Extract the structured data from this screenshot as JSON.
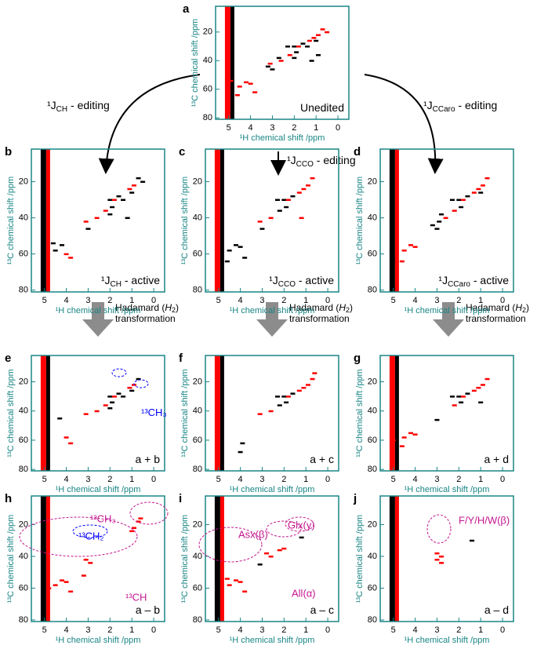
{
  "arrows": {
    "left": [
      "¹J",
      "CH",
      " - editing"
    ],
    "mid": [
      "¹J",
      "CCO",
      " - editing"
    ],
    "right": [
      "¹J",
      "CCaro",
      " - editing"
    ],
    "hadamard": [
      "Hadamard (",
      "H",
      "2",
      ")",
      "transformation"
    ]
  },
  "panels": [
    {
      "letter": "a",
      "label": [
        "",
        "",
        "Unedited"
      ],
      "xlabel": "¹H chemical shift /ppm",
      "ylabel": "¹³C chemical shift /ppm",
      "xlim": [
        5.6,
        -0.5
      ],
      "ylim": [
        2,
        81
      ],
      "xticks": [
        5,
        4,
        3,
        2,
        1,
        0
      ],
      "yticks": [
        20,
        40,
        60,
        80
      ],
      "red_peaks": [
        [
          0.9,
          22
        ],
        [
          0.7,
          18
        ],
        [
          1.1,
          24
        ],
        [
          0.5,
          20
        ],
        [
          1.3,
          26
        ],
        [
          1.8,
          30
        ],
        [
          2.2,
          36
        ],
        [
          2.6,
          40
        ],
        [
          3.1,
          42
        ],
        [
          4.2,
          55
        ],
        [
          4.5,
          58
        ],
        [
          4.0,
          56
        ],
        [
          3.8,
          62
        ],
        [
          4.6,
          64
        ],
        [
          4.9,
          54
        ]
      ],
      "black_peaks": [
        [
          1.6,
          28
        ],
        [
          2.0,
          30
        ],
        [
          1.9,
          34
        ],
        [
          2.3,
          30
        ],
        [
          1.4,
          30
        ],
        [
          1.0,
          26
        ],
        [
          3.0,
          46
        ],
        [
          3.2,
          44
        ],
        [
          2.7,
          38
        ],
        [
          2.0,
          38
        ],
        [
          1.2,
          40
        ],
        [
          0.9,
          36
        ]
      ],
      "annotations": []
    },
    {
      "letter": "b",
      "label": [
        "¹J",
        "CH",
        " - active"
      ],
      "xlabel": "¹H chemical shift /ppm",
      "ylabel": "¹³C chemical shift /ppm",
      "xlim": [
        5.6,
        -0.5
      ],
      "ylim": [
        2,
        81
      ],
      "xticks": [
        5,
        4,
        3,
        2,
        1,
        0
      ],
      "yticks": [
        20,
        40,
        60,
        80
      ],
      "red_peaks": [
        [
          0.9,
          22
        ],
        [
          1.1,
          24
        ],
        [
          1.8,
          30
        ],
        [
          2.2,
          36
        ],
        [
          2.6,
          40
        ],
        [
          3.1,
          42
        ],
        [
          4.0,
          60
        ],
        [
          3.8,
          62
        ]
      ],
      "black_peaks": [
        [
          1.6,
          28
        ],
        [
          2.0,
          30
        ],
        [
          1.9,
          34
        ],
        [
          1.4,
          30
        ],
        [
          1.0,
          26
        ],
        [
          0.7,
          18
        ],
        [
          0.5,
          20
        ],
        [
          3.0,
          46
        ],
        [
          4.2,
          55
        ],
        [
          4.5,
          58
        ],
        [
          4.6,
          54
        ],
        [
          2.0,
          38
        ],
        [
          1.2,
          40
        ]
      ],
      "annotations": []
    },
    {
      "letter": "c",
      "label": [
        "¹J",
        "CCO",
        " - active"
      ],
      "xlabel": "¹H chemical shift /ppm",
      "ylabel": "¹³C chemical shift /ppm",
      "xlim": [
        5.6,
        -0.5
      ],
      "ylim": [
        2,
        81
      ],
      "xticks": [
        5,
        4,
        3,
        2,
        1,
        0
      ],
      "yticks": [
        20,
        40,
        60,
        80
      ],
      "red_peaks": [
        [
          0.9,
          22
        ],
        [
          0.7,
          18
        ],
        [
          1.1,
          24
        ],
        [
          1.3,
          26
        ],
        [
          1.8,
          30
        ],
        [
          2.6,
          40
        ],
        [
          3.1,
          42
        ],
        [
          1.2,
          40
        ]
      ],
      "black_peaks": [
        [
          1.6,
          28
        ],
        [
          2.0,
          30
        ],
        [
          1.9,
          34
        ],
        [
          2.3,
          30
        ],
        [
          4.2,
          55
        ],
        [
          4.5,
          58
        ],
        [
          4.0,
          56
        ],
        [
          3.8,
          62
        ],
        [
          4.6,
          64
        ],
        [
          3.0,
          46
        ],
        [
          2.2,
          36
        ]
      ],
      "annotations": []
    },
    {
      "letter": "d",
      "label": [
        "¹J",
        "CCaro",
        " - active"
      ],
      "xlabel": "¹H chemical shift /ppm",
      "ylabel": "¹³C chemical shift /ppm",
      "xlim": [
        5.6,
        -0.5
      ],
      "ylim": [
        2,
        81
      ],
      "xticks": [
        5,
        4,
        3,
        2,
        1,
        0
      ],
      "yticks": [
        20,
        40,
        60,
        80
      ],
      "red_peaks": [
        [
          0.9,
          22
        ],
        [
          0.7,
          18
        ],
        [
          1.1,
          24
        ],
        [
          1.3,
          26
        ],
        [
          1.8,
          30
        ],
        [
          2.2,
          36
        ],
        [
          2.6,
          40
        ],
        [
          4.2,
          55
        ],
        [
          4.5,
          58
        ],
        [
          4.0,
          56
        ],
        [
          4.6,
          64
        ]
      ],
      "black_peaks": [
        [
          1.6,
          28
        ],
        [
          2.0,
          30
        ],
        [
          1.9,
          34
        ],
        [
          2.3,
          30
        ],
        [
          1.0,
          26
        ],
        [
          3.0,
          46
        ],
        [
          3.2,
          44
        ],
        [
          2.8,
          38
        ],
        [
          2.9,
          42
        ]
      ],
      "annotations": []
    },
    {
      "letter": "e",
      "label": [
        "",
        "",
        "a + b"
      ],
      "xlabel": "¹H chemical shift /ppm",
      "ylabel": "¹³C chemical shift /ppm",
      "xlim": [
        5.6,
        -0.5
      ],
      "ylim": [
        2,
        81
      ],
      "xticks": [
        5,
        4,
        3,
        2,
        1,
        0
      ],
      "yticks": [
        20,
        40,
        60,
        80
      ],
      "red_peaks": [
        [
          0.9,
          22
        ],
        [
          1.1,
          24
        ],
        [
          1.8,
          30
        ],
        [
          2.2,
          36
        ],
        [
          2.6,
          40
        ],
        [
          3.1,
          42
        ],
        [
          3.8,
          62
        ],
        [
          4.0,
          58
        ]
      ],
      "black_peaks": [
        [
          1.6,
          28
        ],
        [
          2.0,
          30
        ],
        [
          1.9,
          34
        ],
        [
          1.4,
          30
        ],
        [
          1.0,
          26
        ],
        [
          0.7,
          18
        ],
        [
          4.3,
          45
        ],
        [
          2.0,
          38
        ]
      ],
      "annotations": [
        "¹³CH₃"
      ]
    },
    {
      "letter": "f",
      "label": [
        "",
        "",
        "a + c"
      ],
      "xlabel": "¹H chemical shift /ppm",
      "ylabel": "¹³C chemical shift /ppm",
      "xlim": [
        5.6,
        -0.5
      ],
      "ylim": [
        2,
        81
      ],
      "xticks": [
        5,
        4,
        3,
        2,
        1,
        0
      ],
      "yticks": [
        20,
        40,
        60,
        80
      ],
      "red_peaks": [
        [
          0.9,
          22
        ],
        [
          0.7,
          18
        ],
        [
          1.1,
          24
        ],
        [
          1.3,
          26
        ],
        [
          1.8,
          30
        ],
        [
          2.6,
          40
        ],
        [
          3.1,
          42
        ],
        [
          0.6,
          14
        ]
      ],
      "black_peaks": [
        [
          1.6,
          28
        ],
        [
          2.0,
          30
        ],
        [
          1.9,
          34
        ],
        [
          2.3,
          30
        ],
        [
          2.2,
          36
        ],
        [
          3.9,
          62
        ],
        [
          4.0,
          68
        ]
      ],
      "annotations": []
    },
    {
      "letter": "g",
      "label": [
        "",
        "",
        "a + d"
      ],
      "xlabel": "¹H chemical shift /ppm",
      "ylabel": "¹³C chemical shift /ppm",
      "xlim": [
        5.6,
        -0.5
      ],
      "ylim": [
        2,
        81
      ],
      "xticks": [
        5,
        4,
        3,
        2,
        1,
        0
      ],
      "yticks": [
        20,
        40,
        60,
        80
      ],
      "red_peaks": [
        [
          0.9,
          22
        ],
        [
          0.7,
          18
        ],
        [
          1.1,
          24
        ],
        [
          1.3,
          26
        ],
        [
          1.8,
          30
        ],
        [
          2.2,
          36
        ],
        [
          4.2,
          55
        ],
        [
          4.5,
          58
        ],
        [
          4.0,
          56
        ],
        [
          4.6,
          64
        ],
        [
          5.0,
          60
        ]
      ],
      "black_peaks": [
        [
          1.6,
          28
        ],
        [
          2.0,
          30
        ],
        [
          1.9,
          34
        ],
        [
          2.3,
          30
        ],
        [
          3.0,
          46
        ],
        [
          1.0,
          34
        ]
      ],
      "annotations": []
    },
    {
      "letter": "h",
      "label": [
        "",
        "",
        "a – b"
      ],
      "xlabel": "¹H chemical shift /ppm",
      "ylabel": "¹³C chemical shift /ppm",
      "xlim": [
        5.6,
        -0.5
      ],
      "ylim": [
        2,
        81
      ],
      "xticks": [
        5,
        4,
        3,
        2,
        1,
        0
      ],
      "yticks": [
        20,
        40,
        60,
        80
      ],
      "red_peaks": [
        [
          0.9,
          22
        ],
        [
          0.7,
          18
        ],
        [
          1.0,
          24
        ],
        [
          0.6,
          16
        ],
        [
          3.1,
          42
        ],
        [
          2.9,
          44
        ],
        [
          4.2,
          55
        ],
        [
          4.5,
          58
        ],
        [
          4.0,
          56
        ],
        [
          3.8,
          62
        ],
        [
          3.2,
          52
        ],
        [
          4.8,
          60
        ]
      ],
      "black_peaks": [],
      "annotations": [
        "¹³CH₃",
        "¹³CH₂",
        "¹³CH"
      ]
    },
    {
      "letter": "i",
      "label": [
        "",
        "",
        "a – c"
      ],
      "xlabel": "¹H chemical shift /ppm",
      "ylabel": "¹³C chemical shift /ppm",
      "xlim": [
        5.6,
        -0.5
      ],
      "ylim": [
        2,
        81
      ],
      "xticks": [
        5,
        4,
        3,
        2,
        1,
        0
      ],
      "yticks": [
        20,
        40,
        60,
        80
      ],
      "red_peaks": [
        [
          2.8,
          38
        ],
        [
          2.6,
          40
        ],
        [
          2.2,
          36
        ],
        [
          2.0,
          35
        ],
        [
          4.2,
          55
        ],
        [
          4.5,
          58
        ],
        [
          4.0,
          56
        ],
        [
          3.8,
          62
        ],
        [
          4.6,
          54
        ]
      ],
      "black_peaks": [
        [
          3.1,
          45
        ],
        [
          1.2,
          28
        ]
      ],
      "annotations": [
        "Asx(β)",
        "Glx(γ)",
        "All(α)"
      ]
    },
    {
      "letter": "j",
      "label": [
        "",
        "",
        "a – d"
      ],
      "xlabel": "¹H chemical shift /ppm",
      "ylabel": "¹³C chemical shift /ppm",
      "xlim": [
        5.6,
        -0.5
      ],
      "ylim": [
        2,
        81
      ],
      "xticks": [
        5,
        4,
        3,
        2,
        1,
        0
      ],
      "yticks": [
        20,
        40,
        60,
        80
      ],
      "red_peaks": [
        [
          3.0,
          38
        ],
        [
          2.8,
          40
        ],
        [
          3.0,
          42
        ],
        [
          2.8,
          44
        ]
      ],
      "black_peaks": [
        [
          1.4,
          30
        ]
      ],
      "annotations": [
        "F/Y/H/W(β)"
      ]
    }
  ]
}
